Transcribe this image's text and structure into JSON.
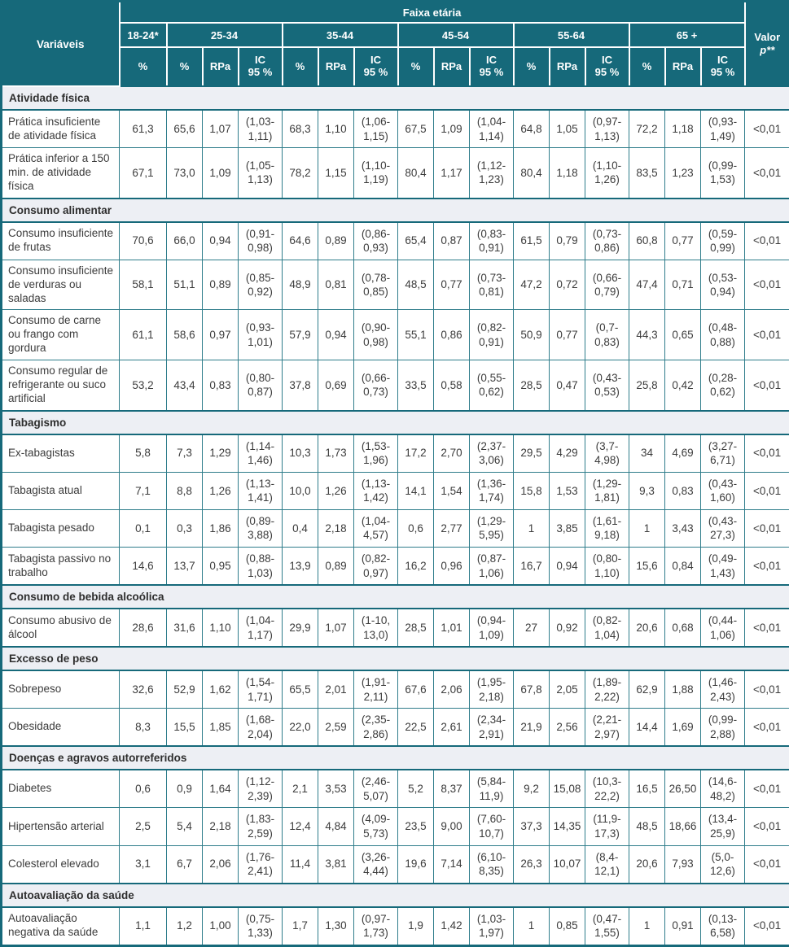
{
  "table": {
    "variables_header": "Variáveis",
    "top_header": "Faixa etária",
    "pvalue_line1": "Valor",
    "pvalue_line2": "p**",
    "age_groups": [
      {
        "label": "18-24*"
      },
      {
        "label": "25-34"
      },
      {
        "label": "35-44"
      },
      {
        "label": "45-54"
      },
      {
        "label": "55-64"
      },
      {
        "label": "65 +"
      }
    ],
    "sub_headers": [
      "%",
      "%",
      "RPa",
      "IC\n95 %",
      "%",
      "RPa",
      "IC\n95 %",
      "%",
      "RPa",
      "IC\n95 %",
      "%",
      "RPa",
      "IC\n95 %",
      "%",
      "RPa",
      "IC\n95 %"
    ],
    "sections": [
      {
        "title": "Atividade física",
        "rows": [
          {
            "label": "Prática insuficiente de atividade física",
            "cells": [
              "61,3",
              "65,6",
              "1,07",
              "(1,03-1,11)",
              "68,3",
              "1,10",
              "(1,06-1,15)",
              "67,5",
              "1,09",
              "(1,04-1,14)",
              "64,8",
              "1,05",
              "(0,97-1,13)",
              "72,2",
              "1,18",
              "(0,93-1,49)"
            ],
            "p": "<0,01"
          },
          {
            "label": "Prática inferior a 150 min. de atividade física",
            "cells": [
              "67,1",
              "73,0",
              "1,09",
              "(1,05-1,13)",
              "78,2",
              "1,15",
              "(1,10-1,19)",
              "80,4",
              "1,17",
              "(1,12-1,23)",
              "80,4",
              "1,18",
              "(1,10-1,26)",
              "83,5",
              "1,23",
              "(0,99-1,53)"
            ],
            "p": "<0,01"
          }
        ]
      },
      {
        "title": "Consumo alimentar",
        "rows": [
          {
            "label": "Consumo insuficiente de frutas",
            "cells": [
              "70,6",
              "66,0",
              "0,94",
              "(0,91-0,98)",
              "64,6",
              "0,89",
              "(0,86-0,93)",
              "65,4",
              "0,87",
              "(0,83-0,91)",
              "61,5",
              "0,79",
              "(0,73-0,86)",
              "60,8",
              "0,77",
              "(0,59-0,99)"
            ],
            "p": "<0,01"
          },
          {
            "label": "Consumo insuficiente de verduras ou saladas",
            "cells": [
              "58,1",
              "51,1",
              "0,89",
              "(0,85-0,92)",
              "48,9",
              "0,81",
              "(0,78-0,85)",
              "48,5",
              "0,77",
              "(0,73-0,81)",
              "47,2",
              "0,72",
              "(0,66-0,79)",
              "47,4",
              "0,71",
              "(0,53-0,94)"
            ],
            "p": "<0,01"
          },
          {
            "label": "Consumo de carne ou frango com gordura",
            "cells": [
              "61,1",
              "58,6",
              "0,97",
              "(0,93-1,01)",
              "57,9",
              "0,94",
              "(0,90-0,98)",
              "55,1",
              "0,86",
              "(0,82-0,91)",
              "50,9",
              "0,77",
              "(0,7-0,83)",
              "44,3",
              "0,65",
              "(0,48-0,88)"
            ],
            "p": "<0,01"
          },
          {
            "label": "Consumo regular de refrigerante ou suco artificial",
            "cells": [
              "53,2",
              "43,4",
              "0,83",
              "(0,80-0,87)",
              "37,8",
              "0,69",
              "(0,66-0,73)",
              "33,5",
              "0,58",
              "(0,55-0,62)",
              "28,5",
              "0,47",
              "(0,43-0,53)",
              "25,8",
              "0,42",
              "(0,28-0,62)"
            ],
            "p": "<0,01"
          }
        ]
      },
      {
        "title": "Tabagismo",
        "rows": [
          {
            "label": "Ex-tabagistas",
            "cells": [
              "5,8",
              "7,3",
              "1,29",
              "(1,14-1,46)",
              "10,3",
              "1,73",
              "(1,53-1,96)",
              "17,2",
              "2,70",
              "(2,37-3,06)",
              "29,5",
              "4,29",
              "(3,7-4,98)",
              "34",
              "4,69",
              "(3,27-6,71)"
            ],
            "p": "<0,01"
          },
          {
            "label": "Tabagista atual",
            "cells": [
              "7,1",
              "8,8",
              "1,26",
              "(1,13-1,41)",
              "10,0",
              "1,26",
              "(1,13-1,42)",
              "14,1",
              "1,54",
              "(1,36-1,74)",
              "15,8",
              "1,53",
              "(1,29-1,81)",
              "9,3",
              "0,83",
              "(0,43-1,60)"
            ],
            "p": "<0,01"
          },
          {
            "label": "Tabagista pesado",
            "cells": [
              "0,1",
              "0,3",
              "1,86",
              "(0,89-3,88)",
              "0,4",
              "2,18",
              "(1,04-4,57)",
              "0,6",
              "2,77",
              "(1,29-5,95)",
              "1",
              "3,85",
              "(1,61-9,18)",
              "1",
              "3,43",
              "(0,43-27,3)"
            ],
            "p": "<0,01"
          },
          {
            "label": "Tabagista passivo no trabalho",
            "cells": [
              "14,6",
              "13,7",
              "0,95",
              "(0,88-1,03)",
              "13,9",
              "0,89",
              "(0,82-0,97)",
              "16,2",
              "0,96",
              "(0,87-1,06)",
              "16,7",
              "0,94",
              "(0,80-1,10)",
              "15,6",
              "0,84",
              "(0,49-1,43)"
            ],
            "p": "<0,01"
          }
        ]
      },
      {
        "title": "Consumo de bebida alcoólica",
        "rows": [
          {
            "label": "Consumo abusivo de álcool",
            "cells": [
              "28,6",
              "31,6",
              "1,10",
              "(1,04-1,17)",
              "29,9",
              "1,07",
              "(1-10, 13,0)",
              "28,5",
              "1,01",
              "(0,94-1,09)",
              "27",
              "0,92",
              "(0,82-1,04)",
              "20,6",
              "0,68",
              "(0,44-1,06)"
            ],
            "p": "<0,01"
          }
        ]
      },
      {
        "title": "Excesso de peso",
        "rows": [
          {
            "label": "Sobrepeso",
            "cells": [
              "32,6",
              "52,9",
              "1,62",
              "(1,54-1,71)",
              "65,5",
              "2,01",
              "(1,91-2,11)",
              "67,6",
              "2,06",
              "(1,95-2,18)",
              "67,8",
              "2,05",
              "(1,89-2,22)",
              "62,9",
              "1,88",
              "(1,46-2,43)"
            ],
            "p": "<0,01"
          },
          {
            "label": "Obesidade",
            "cells": [
              "8,3",
              "15,5",
              "1,85",
              "(1,68-2,04)",
              "22,0",
              "2,59",
              "(2,35-2,86)",
              "22,5",
              "2,61",
              "(2,34-2,91)",
              "21,9",
              "2,56",
              "(2,21-2,97)",
              "14,4",
              "1,69",
              "(0,99-2,88)"
            ],
            "p": "<0,01"
          }
        ]
      },
      {
        "title": "Doenças e agravos autorreferidos",
        "rows": [
          {
            "label": "Diabetes",
            "cells": [
              "0,6",
              "0,9",
              "1,64",
              "(1,12-2,39)",
              "2,1",
              "3,53",
              "(2,46-5,07)",
              "5,2",
              "8,37",
              "(5,84-11,9)",
              "9,2",
              "15,08",
              "(10,3-22,2)",
              "16,5",
              "26,50",
              "(14,6-48,2)"
            ],
            "p": "<0,01"
          },
          {
            "label": "Hipertensão arterial",
            "cells": [
              "2,5",
              "5,4",
              "2,18",
              "(1,83-2,59)",
              "12,4",
              "4,84",
              "(4,09-5,73)",
              "23,5",
              "9,00",
              "(7,60-10,7)",
              "37,3",
              "14,35",
              "(11,9-17,3)",
              "48,5",
              "18,66",
              "(13,4-25,9)"
            ],
            "p": "<0,01"
          },
          {
            "label": "Colesterol elevado",
            "cells": [
              "3,1",
              "6,7",
              "2,06",
              "(1,76-2,41)",
              "11,4",
              "3,81",
              "(3,26-4,44)",
              "19,6",
              "7,14",
              "(6,10-8,35)",
              "26,3",
              "10,07",
              "(8,4-12,1)",
              "20,6",
              "7,93",
              "(5,0-12,6)"
            ],
            "p": "<0,01"
          }
        ]
      },
      {
        "title": "Autoavaliação da saúde",
        "rows": [
          {
            "label": "Autoavaliação negativa da saúde",
            "cells": [
              "1,1",
              "1,2",
              "1,00",
              "(0,75-1,33)",
              "1,7",
              "1,30",
              "(0,97-1,73)",
              "1,9",
              "1,42",
              "(1,03-1,97)",
              "1",
              "0,85",
              "(0,47-1,55)",
              "1",
              "0,91",
              "(0,13-6,58)"
            ],
            "p": "<0,01"
          }
        ]
      }
    ],
    "colors": {
      "header_bg": "#16697a",
      "grid_border": "#2f7d8b",
      "section_bg": "#edeff4"
    }
  }
}
